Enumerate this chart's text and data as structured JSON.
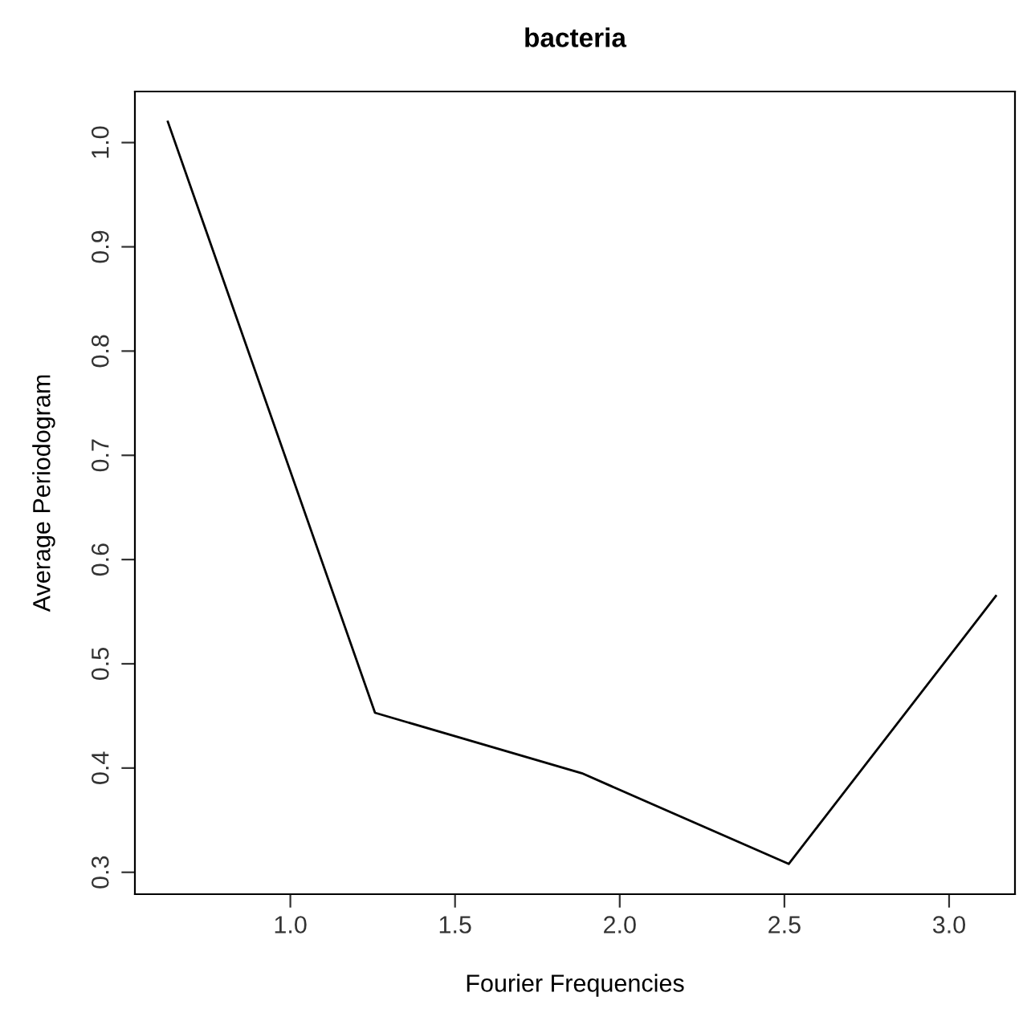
{
  "chart_data": {
    "type": "line",
    "title": "bacteria",
    "xlabel": "Fourier Frequencies",
    "ylabel": "Average Periodogram",
    "x": [
      0.628,
      1.257,
      1.885,
      2.513,
      3.142
    ],
    "series": [
      {
        "color": "#000000",
        "values": [
          1.02,
          0.453,
          0.395,
          0.308,
          0.565
        ]
      }
    ],
    "xlim": [
      0.528,
      3.2
    ],
    "ylim": [
      0.279,
      1.049
    ],
    "xticks": [
      {
        "value": 1.0,
        "label": "1.0"
      },
      {
        "value": 1.5,
        "label": "1.5"
      },
      {
        "value": 2.0,
        "label": "2.0"
      },
      {
        "value": 2.5,
        "label": "2.5"
      },
      {
        "value": 3.0,
        "label": "3.0"
      }
    ],
    "yticks": [
      {
        "value": 0.3,
        "label": "0.3"
      },
      {
        "value": 0.4,
        "label": "0.4"
      },
      {
        "value": 0.5,
        "label": "0.5"
      },
      {
        "value": 0.6,
        "label": "0.6"
      },
      {
        "value": 0.7,
        "label": "0.7"
      },
      {
        "value": 0.8,
        "label": "0.8"
      },
      {
        "value": 0.9,
        "label": "0.9"
      },
      {
        "value": 1.0,
        "label": "1.0"
      }
    ],
    "grid": false,
    "legend": false
  }
}
